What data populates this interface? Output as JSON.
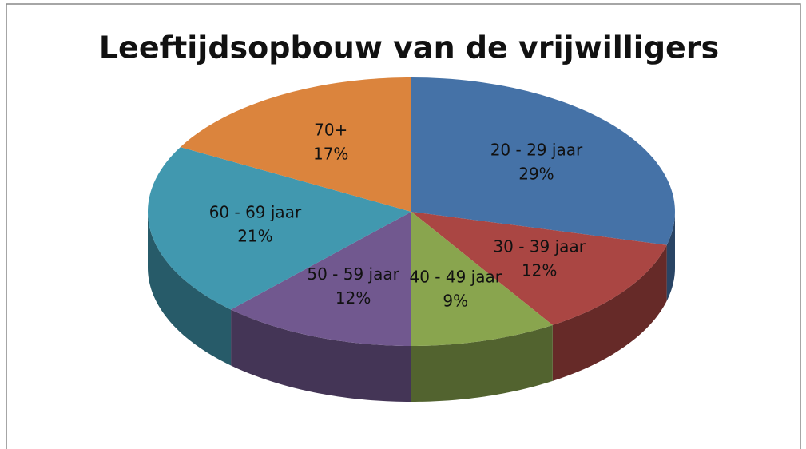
{
  "chart_data": {
    "type": "pie",
    "title": "Leeftijdsopbouw van de vrijwilligers",
    "categories": [
      "20 - 29 jaar",
      "30 - 39 jaar",
      "40 - 49 jaar",
      "50 - 59 jaar",
      "60 - 69 jaar",
      "70+"
    ],
    "values": [
      29,
      12,
      9,
      12,
      21,
      17
    ],
    "value_labels": [
      "29%",
      "12%",
      "9%",
      "12%",
      "21%",
      "17%"
    ],
    "colors": [
      "#4572a7",
      "#aa4643",
      "#89a54e",
      "#71588f",
      "#4198af",
      "#db843d"
    ]
  }
}
